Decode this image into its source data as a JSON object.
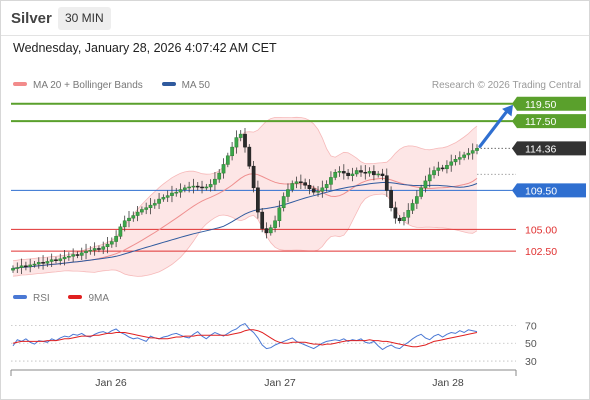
{
  "header": {
    "instrument": "Silver",
    "timeframe": "30 MIN",
    "datetime": "Wednesday, January 28, 2026 4:07:42 AM CET"
  },
  "legend": {
    "items": [
      {
        "label": "MA 20 + Bollinger Bands",
        "color": "#f28b8b"
      },
      {
        "label": "MA 50",
        "color": "#2f5a9e"
      }
    ],
    "credit": "Research © 2026 Trading Central"
  },
  "rsi_legend": {
    "items": [
      {
        "label": "RSI",
        "color": "#4a78d4"
      },
      {
        "label": "9MA",
        "color": "#e02020"
      }
    ]
  },
  "chart_data": [
    {
      "type": "candlestick",
      "x_ticks": [
        "Jan 26",
        "Jan 27",
        "Jan 28"
      ],
      "ylim": [
        100.2,
        120.4
      ],
      "levels": [
        {
          "value": 119.5,
          "label": "119.50",
          "kind": "resistance",
          "color": "#5aa02c"
        },
        {
          "value": 117.5,
          "label": "117.50",
          "kind": "resistance",
          "color": "#5aa02c"
        },
        {
          "value": 114.36,
          "label": "114.36",
          "kind": "last-price",
          "color": "#333333"
        },
        {
          "value": 109.5,
          "label": "109.50",
          "kind": "pivot",
          "color": "#2f6fd0"
        },
        {
          "value": 105.0,
          "label": "105.00",
          "kind": "support",
          "color": "#e03030"
        },
        {
          "value": 102.5,
          "label": "102.50",
          "kind": "support",
          "color": "#e03030"
        }
      ],
      "forecast_arrow": {
        "from": 114.36,
        "to": 119.5,
        "color": "#2f6fd0"
      },
      "close": [
        100.5,
        100.6,
        100.8,
        100.7,
        100.9,
        101.0,
        101.2,
        101.1,
        101.3,
        101.5,
        101.4,
        101.6,
        101.8,
        101.9,
        102.1,
        102.0,
        102.3,
        102.5,
        102.6,
        102.8,
        102.7,
        103.0,
        103.3,
        103.6,
        104.2,
        105.3,
        106.0,
        106.3,
        106.6,
        107.0,
        107.3,
        107.5,
        107.8,
        108.0,
        108.5,
        108.7,
        108.9,
        109.2,
        109.3,
        109.6,
        109.8,
        109.9,
        110.0,
        109.9,
        109.8,
        109.9,
        110.2,
        110.8,
        111.5,
        112.5,
        113.5,
        114.5,
        115.6,
        116.0,
        114.5,
        112.3,
        109.8,
        107.0,
        105.1,
        104.6,
        105.2,
        106.0,
        107.5,
        108.8,
        109.6,
        110.3,
        110.5,
        110.4,
        110.1,
        109.7,
        109.3,
        109.4,
        109.8,
        110.2,
        111.0,
        111.6,
        111.7,
        111.5,
        111.2,
        111.4,
        111.8,
        111.6,
        111.5,
        111.7,
        111.3,
        111.4,
        111.2,
        109.5,
        107.5,
        106.3,
        106.0,
        106.4,
        107.2,
        108.0,
        108.8,
        109.8,
        110.6,
        111.3,
        111.8,
        112.1,
        112.0,
        112.4,
        112.8,
        113.1,
        113.3,
        113.6,
        113.8,
        114.1,
        114.36
      ],
      "rsi": [
        47,
        54,
        52,
        55,
        51,
        49,
        53,
        52,
        51,
        55,
        53,
        56,
        58,
        57,
        60,
        59,
        61,
        58,
        57,
        60,
        62,
        63,
        61,
        64,
        66,
        62,
        60,
        57,
        55,
        56,
        54,
        52,
        58,
        56,
        55,
        57,
        58,
        60,
        61,
        59,
        57,
        56,
        60,
        63,
        58,
        55,
        59,
        62,
        60,
        58,
        61,
        64,
        66,
        70,
        72,
        66,
        62,
        56,
        48,
        44,
        45,
        48,
        50,
        52,
        54,
        56,
        52,
        50,
        48,
        46,
        44,
        47,
        50,
        52,
        53,
        54,
        53,
        55,
        52,
        54,
        53,
        55,
        51,
        50,
        52,
        47,
        43,
        46,
        48,
        45,
        44,
        48,
        51,
        55,
        58,
        60,
        56,
        54,
        58,
        60,
        57,
        60,
        62,
        61,
        64,
        62,
        65,
        64,
        63
      ],
      "rsi_ma": [
        50,
        51,
        52,
        52,
        52,
        52,
        52,
        52,
        53,
        53,
        53,
        54,
        55,
        55,
        56,
        57,
        58,
        58,
        58,
        59,
        59,
        60,
        61,
        61,
        62,
        62,
        62,
        61,
        60,
        59,
        58,
        57,
        56,
        56,
        55,
        55,
        55,
        56,
        57,
        57,
        58,
        58,
        58,
        59,
        59,
        59,
        59,
        59,
        59,
        59,
        59,
        60,
        61,
        62,
        64,
        65,
        65,
        64,
        62,
        59,
        56,
        53,
        51,
        50,
        50,
        51,
        51,
        51,
        51,
        50,
        49,
        49,
        48,
        49,
        49,
        50,
        51,
        52,
        53,
        53,
        53,
        53,
        53,
        54,
        53,
        53,
        52,
        52,
        51,
        50,
        49,
        48,
        47,
        46,
        46,
        47,
        48,
        50,
        52,
        53,
        54,
        55,
        56,
        57,
        58,
        59,
        60,
        61,
        62
      ],
      "rsi_levels": [
        70,
        50,
        30
      ],
      "rsi_ylim": [
        20,
        85
      ]
    }
  ]
}
